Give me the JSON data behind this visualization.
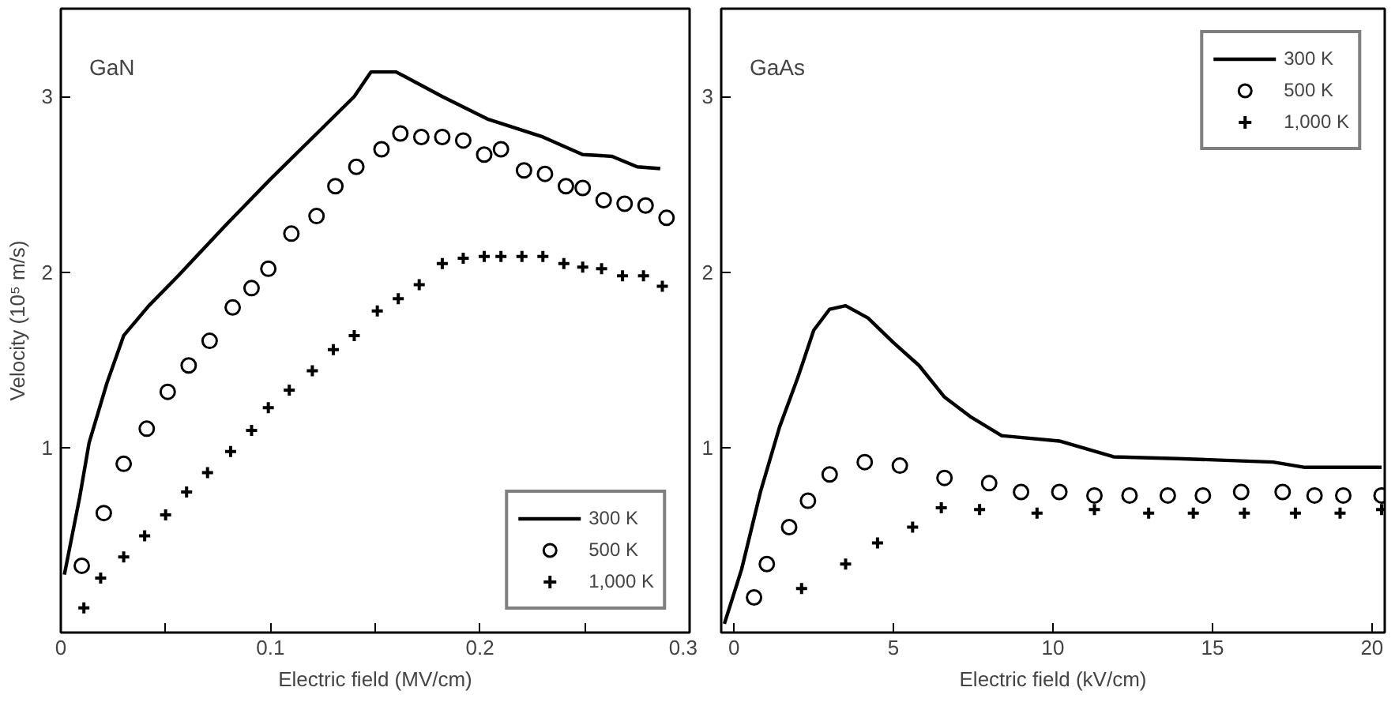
{
  "chart_data": [
    {
      "type": "line",
      "annotations": [
        "GaN"
      ],
      "xlabel": "Electric field (MV/cm)",
      "ylabel": "Velocity (10⁵ m/s)",
      "xlim": [
        0,
        0.3
      ],
      "ylim": [
        -0.05,
        3.5
      ],
      "xticks": [
        0,
        {
          "value": 0.05,
          "label": null
        },
        0.1,
        {
          "value": 0.15,
          "label": null
        },
        0.2,
        {
          "value": 0.25,
          "label": null
        },
        0.3
      ],
      "yticks": [
        1,
        2,
        3
      ],
      "grid": false,
      "legend": "bottom right",
      "series": [
        {
          "name": "300 K",
          "color": "#000000",
          "line_style": "solid",
          "x": [
            0.0017,
            0.009,
            0.0135,
            0.022,
            0.03,
            0.042,
            0.056,
            0.078,
            0.1,
            0.123,
            0.14,
            0.148,
            0.16,
            0.182,
            0.204,
            0.23,
            0.249,
            0.263,
            0.275,
            0.286
          ],
          "values": [
            0.28,
            0.72,
            1.03,
            1.37,
            1.64,
            1.81,
            1.98,
            2.26,
            2.53,
            2.8,
            3.0,
            3.14,
            3.14,
            3.0,
            2.87,
            2.77,
            2.67,
            2.66,
            2.6,
            2.59
          ]
        },
        {
          "name": "500 K",
          "type": "scatter",
          "marker": "circle",
          "color": "#000000",
          "x": [
            0.01,
            0.0205,
            0.03,
            0.041,
            0.051,
            0.061,
            0.071,
            0.082,
            0.091,
            0.099,
            0.11,
            0.122,
            0.131,
            0.141,
            0.153,
            0.162,
            0.172,
            0.182,
            0.192,
            0.202,
            0.21,
            0.221,
            0.231,
            0.241,
            0.249,
            0.259,
            0.269,
            0.279,
            0.289
          ],
          "values": [
            0.33,
            0.63,
            0.91,
            1.11,
            1.32,
            1.47,
            1.61,
            1.8,
            1.91,
            2.02,
            2.22,
            2.32,
            2.49,
            2.6,
            2.7,
            2.79,
            2.77,
            2.77,
            2.75,
            2.67,
            2.7,
            2.58,
            2.56,
            2.49,
            2.48,
            2.41,
            2.39,
            2.38,
            2.31
          ]
        },
        {
          "name": "1,000 K",
          "type": "scatter",
          "marker": "cross",
          "color": "#000000",
          "x": [
            0.011,
            0.019,
            0.03,
            0.04,
            0.05,
            0.06,
            0.07,
            0.081,
            0.091,
            0.099,
            0.109,
            0.12,
            0.13,
            0.14,
            0.151,
            0.161,
            0.171,
            0.182,
            0.192,
            0.202,
            0.21,
            0.22,
            0.23,
            0.24,
            0.249,
            0.258,
            0.268,
            0.278,
            0.287
          ],
          "values": [
            0.09,
            0.26,
            0.38,
            0.5,
            0.62,
            0.75,
            0.86,
            0.98,
            1.1,
            1.23,
            1.33,
            1.44,
            1.56,
            1.64,
            1.78,
            1.85,
            1.93,
            2.05,
            2.08,
            2.09,
            2.09,
            2.09,
            2.09,
            2.05,
            2.03,
            2.02,
            1.98,
            1.98,
            1.92
          ]
        }
      ]
    },
    {
      "type": "line",
      "annotations": [
        "GaAs"
      ],
      "xlabel": "Electric field (kV/cm)",
      "xlim": [
        -0.4,
        20.4
      ],
      "ylim": [
        -0.05,
        3.5
      ],
      "xticks": [
        0,
        5,
        10,
        15,
        20
      ],
      "yticks": [
        1,
        2,
        3
      ],
      "grid": false,
      "legend": "top right",
      "series": [
        {
          "name": "300 K",
          "color": "#000000",
          "line_style": "solid",
          "x": [
            -0.3,
            0.24,
            0.83,
            1.43,
            2.0,
            2.5,
            3.0,
            3.5,
            4.2,
            5.0,
            5.8,
            6.6,
            7.4,
            8.4,
            10.2,
            11.9,
            13.9,
            16.9,
            17.9,
            20.3
          ],
          "values": [
            0,
            0.31,
            0.75,
            1.12,
            1.4,
            1.67,
            1.79,
            1.81,
            1.74,
            1.6,
            1.47,
            1.29,
            1.18,
            1.07,
            1.04,
            0.95,
            0.94,
            0.92,
            0.89,
            0.89
          ]
        },
        {
          "name": "500 K",
          "type": "scatter",
          "marker": "circle",
          "color": "#000000",
          "x": [
            0.63,
            1.03,
            1.73,
            2.32,
            3.0,
            4.1,
            5.2,
            6.6,
            8.0,
            9.0,
            10.2,
            11.3,
            12.4,
            13.6,
            14.7,
            15.9,
            17.2,
            18.2,
            19.1,
            20.3
          ],
          "values": [
            0.15,
            0.34,
            0.55,
            0.7,
            0.85,
            0.92,
            0.9,
            0.83,
            0.8,
            0.75,
            0.75,
            0.73,
            0.73,
            0.73,
            0.73,
            0.75,
            0.75,
            0.73,
            0.73,
            0.73
          ]
        },
        {
          "name": "1,000 K",
          "type": "scatter",
          "marker": "cross",
          "color": "#000000",
          "x": [
            2.12,
            3.5,
            4.5,
            5.6,
            6.5,
            7.7,
            9.5,
            11.3,
            13.0,
            14.4,
            16.0,
            17.6,
            19.0,
            20.3
          ],
          "values": [
            0.2,
            0.34,
            0.46,
            0.55,
            0.66,
            0.65,
            0.63,
            0.65,
            0.63,
            0.63,
            0.63,
            0.63,
            0.63,
            0.65
          ]
        }
      ]
    }
  ]
}
